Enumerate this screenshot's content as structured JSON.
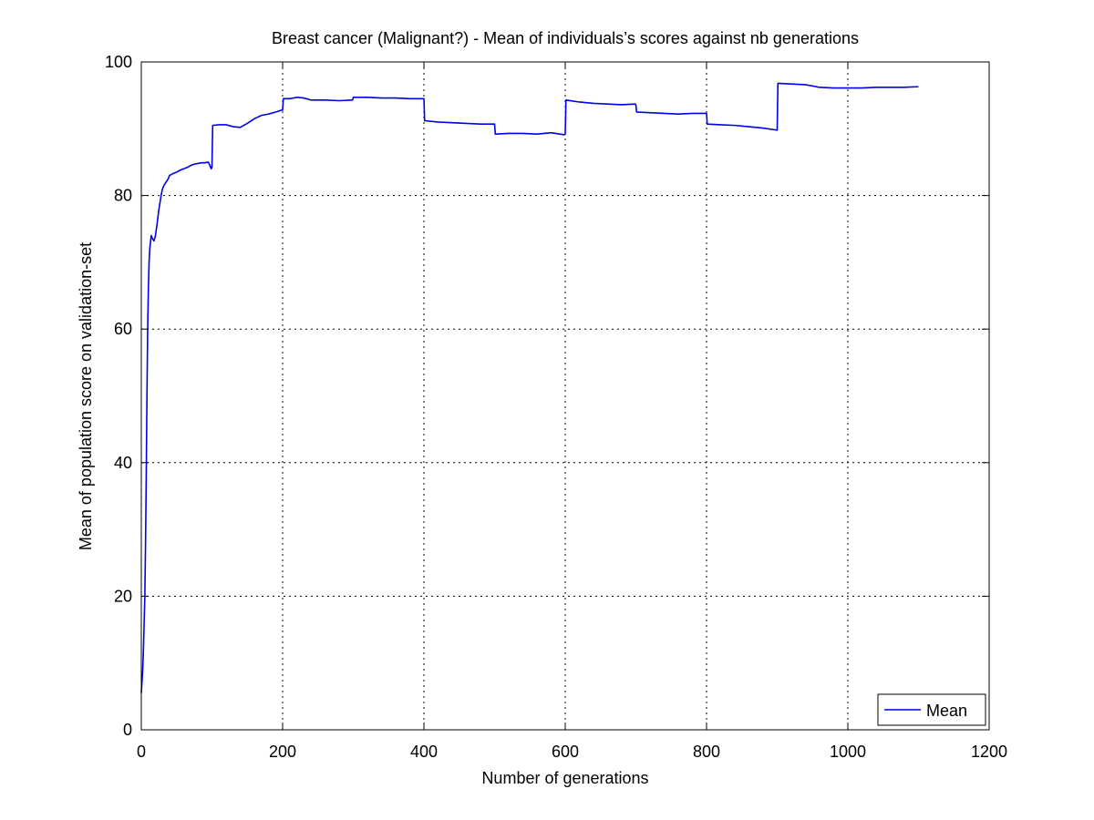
{
  "chart_data": {
    "type": "line",
    "title": "Breast cancer (Malignant?) - Mean of individuals’s scores against nb generations",
    "xlabel": "Number of generations",
    "ylabel": "Mean of population score on validation-set",
    "xlim": [
      0,
      1200
    ],
    "ylim": [
      0,
      100
    ],
    "xticks": [
      "0",
      "200",
      "400",
      "600",
      "800",
      "1000",
      "1200"
    ],
    "yticks": [
      "0",
      "20",
      "40",
      "60",
      "80",
      "100"
    ],
    "grid": true,
    "legend": {
      "position": "bottom-right",
      "entries": [
        "Mean"
      ]
    },
    "series": [
      {
        "name": "Mean",
        "color": "#0000ee",
        "x": [
          0,
          2,
          3,
          5,
          6,
          7,
          8,
          9,
          10,
          11,
          12,
          13,
          14,
          16,
          18,
          20,
          22,
          25,
          28,
          30,
          32,
          35,
          38,
          40,
          45,
          50,
          55,
          60,
          65,
          70,
          75,
          80,
          85,
          90,
          95,
          99,
          100,
          101,
          110,
          120,
          130,
          140,
          150,
          160,
          170,
          180,
          190,
          199,
          200,
          201,
          210,
          220,
          230,
          240,
          260,
          280,
          299,
          300,
          301,
          320,
          340,
          360,
          380,
          399,
          400,
          401,
          420,
          440,
          460,
          480,
          499,
          500,
          501,
          520,
          540,
          560,
          580,
          599,
          600,
          601,
          620,
          640,
          660,
          680,
          699,
          700,
          701,
          720,
          740,
          760,
          780,
          799,
          800,
          801,
          820,
          840,
          860,
          880,
          899,
          900,
          901,
          920,
          940,
          960,
          980,
          1000,
          1020,
          1040,
          1060,
          1080,
          1100
        ],
        "y": [
          5.5,
          9,
          12,
          20,
          28,
          38,
          50,
          60,
          66,
          70,
          72,
          73,
          74,
          73.5,
          73.2,
          74,
          75.5,
          78,
          80,
          81,
          81.5,
          82,
          82.5,
          83,
          83.3,
          83.5,
          83.8,
          84,
          84.2,
          84.5,
          84.7,
          84.8,
          84.9,
          84.9,
          85,
          84,
          84.2,
          90.5,
          90.6,
          90.6,
          90.3,
          90.2,
          90.8,
          91.5,
          92,
          92.2,
          92.5,
          92.8,
          92.8,
          94.5,
          94.5,
          94.7,
          94.6,
          94.3,
          94.3,
          94.2,
          94.3,
          94.7,
          94.7,
          94.7,
          94.6,
          94.6,
          94.5,
          94.5,
          94.5,
          91.2,
          91,
          90.9,
          90.8,
          90.7,
          90.7,
          90.7,
          89.2,
          89.3,
          89.3,
          89.2,
          89.4,
          89.1,
          89.2,
          94.3,
          94,
          93.8,
          93.7,
          93.6,
          93.7,
          93.6,
          92.5,
          92.4,
          92.3,
          92.2,
          92.3,
          92.3,
          92.3,
          90.7,
          90.6,
          90.5,
          90.3,
          90.1,
          89.8,
          89.8,
          96.8,
          96.7,
          96.6,
          96.2,
          96.1,
          96.1,
          96.1,
          96.2,
          96.2,
          96.2,
          96.3
        ]
      }
    ]
  }
}
